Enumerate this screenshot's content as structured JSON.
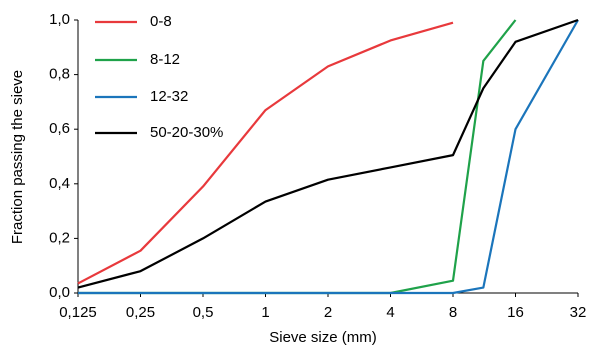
{
  "chart_data": {
    "type": "line",
    "x_label": "Sieve size (mm)",
    "y_label": "Fraction passing the sieve",
    "x": [
      0.125,
      0.25,
      0.5,
      1,
      2,
      4,
      8,
      11.2,
      16,
      32
    ],
    "x_scale": "log",
    "series": [
      {
        "name": "0-8",
        "color": "#e8393c",
        "values": [
          0.035,
          0.155,
          0.39,
          0.67,
          0.83,
          0.925,
          0.99,
          null,
          null,
          null
        ]
      },
      {
        "name": "8-12",
        "color": "#1fa24a",
        "values": [
          0,
          0,
          0,
          0,
          0,
          0,
          0.045,
          0.85,
          1.0,
          null
        ]
      },
      {
        "name": "12-32",
        "color": "#1b75bb",
        "values": [
          0,
          0,
          0,
          0,
          0,
          0,
          0,
          0.02,
          0.6,
          1.0
        ]
      },
      {
        "name": "50-20-30%",
        "color": "#000000",
        "values": [
          0.02,
          0.08,
          0.2,
          0.335,
          0.415,
          0.46,
          0.505,
          0.75,
          0.92,
          1.0
        ]
      }
    ],
    "xlim": [
      0.125,
      32
    ],
    "xticks": [
      {
        "value": 0.125,
        "label": "0,125"
      },
      {
        "value": 0.25,
        "label": "0,25"
      },
      {
        "value": 0.5,
        "label": "0,5"
      },
      1,
      2,
      4,
      8,
      16,
      32
    ],
    "ylim": [
      0,
      1
    ],
    "yticks": [
      {
        "value": 0,
        "label": "0,0"
      },
      {
        "value": 0.2,
        "label": "0,2"
      },
      {
        "value": 0.4,
        "label": "0,4"
      },
      {
        "value": 0.6,
        "label": "0,6"
      },
      {
        "value": 0.8,
        "label": "0,8"
      },
      {
        "value": 1,
        "label": "1,0"
      }
    ],
    "grid": false,
    "legend": "top-left"
  }
}
